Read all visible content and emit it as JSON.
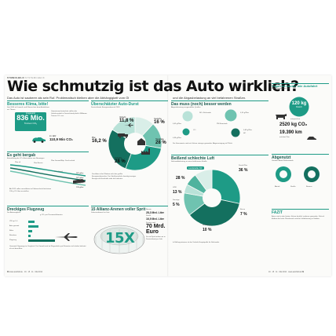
{
  "header": {
    "kicker": "SYMBOLBILD",
    "kicker_sub": "SYSTEMCHECK",
    "headline": "Wie schmutzig ist das   Auto wirklich?",
    "subline_left": "Das Auto ist sauberer als sein Ruf. Problematisch bleiben aber die Abhängigkeit vom Öl",
    "subline_right": "und die Abgasbelastung an viel befahrenen Straßen."
  },
  "klima": {
    "title": "Besseres Klima, bitte!",
    "intro": "Seit 2006 ist Umwelt- und Klimaschutz beim Autofahren ein Thema",
    "value": "836 Mio.",
    "value_label": "insgesamt",
    "value_unit": "Tonnen CO₂",
    "car_label": "Pkws",
    "car_value": "110,9 Mio CO₂",
    "car_unit": "im Jahr",
    "text": "Gemeinsam betrachtet stoßen die Verkehrsmittel in Deutschland jährlich Millionen Tonnen CO₂ aus."
  },
  "es_geht_bergab": {
    "title": "Es geht bergab",
    "subtitle": "Entwicklung der CO₂-Emissionen von Neuwagen",
    "labels": [
      "Pkw alt",
      "Pkw Benzin",
      "Pkw Gesamt/Bsp. Durchschnitt",
      "Pkw Diesel"
    ],
    "note": "Ab 2012 sollen neue Autos im Flottenschnitt höchstens 130 g CO₂/km ausstoßen.",
    "values": [
      "181 g/km",
      "167 g/km",
      "151 g/km",
      "139 g/km"
    ]
  },
  "flugzeug": {
    "title": "Dreckiges Flugzeug",
    "subtitle": "Der Autovergleich",
    "legend": "g CO₂ pro Personenkilometer",
    "rows": [
      "VW up 1.0",
      "Auto gesamt",
      "Bahn",
      "Reisebus",
      "Flugzeug"
    ],
    "values": [
      89,
      142,
      52,
      30,
      380
    ],
    "note": "Gesamte Flugzeuge im Vergleich: Die Umwelt wird im Flugverkehr pro Kilometer viel stärker belastet als mit dem Auto."
  },
  "autodurst": {
    "title": "Überschätzter Auto-Durst",
    "subtitle": "Deutschlands Energieverbrauch 2010",
    "segments": [
      {
        "label": "Verkehr",
        "value": "11,8 %"
      },
      {
        "label": "Gewerbe",
        "value": "16 %"
      },
      {
        "label": "Haushalte",
        "value": "28 %"
      },
      {
        "label": "Industrie",
        "value": "28 %"
      },
      {
        "label": "Pkw",
        "value": "16,2 %"
      }
    ],
    "text": "Das Auto ist bei Weitem nicht der größte Energieverbraucher. Der Straßenverkehr benötigt weniger Energie als Haushalte oder die Industrie."
  },
  "allianz": {
    "title": "15 Allianz-Arenen voller Sprit",
    "subtitle": "Jahresverbrauch in Liter",
    "big_label": "15X",
    "benzin_label": "Benzin",
    "benzin_value": "28,3 Mrd. Liter",
    "diesel_label": "Diesel",
    "diesel_value": "16,9 Mrd. Liter",
    "kosten_label": "Kosten rund",
    "kosten_value": "70 Mrd.",
    "kosten_unit": "Euro",
    "note": "So viel Sprit tanken wir in Deutschland pro Jahr."
  },
  "abgase": {
    "title": "Das muss (noch) besser werden",
    "subtitle": "Abgasbelastung ausgewählter Quellen",
    "items": [
      {
        "label": "NO₂ Stickoxide",
        "value": "0,03 g/Pkw"
      },
      {
        "label": "PM Feinstaub",
        "value": "0,14 g/Pkw"
      },
      {
        "label": "CO",
        "value": "0,38 g/Pkw"
      },
      {
        "label": "HC",
        "value": "0,08 g/Pkw"
      }
    ],
    "text": "Die Grenzwerte sind seit Jahren strenger geworden. Abgasreinigung ist Pflicht."
  },
  "luft": {
    "title": "Beißend schlechte Luft",
    "subtitle": "Stickoxidbelastung an einer befahrenen Straße",
    "segments": [
      {
        "label": "Landstraße Kfz",
        "value": "28 %"
      },
      {
        "label": "Diesel-Pkw",
        "value": "36 %"
      },
      {
        "label": "LKW",
        "value": "13 %"
      },
      {
        "label": "Sonstige",
        "value": "5 %"
      },
      {
        "label": "Busse",
        "value": "7 %"
      },
      {
        "label": "Hintergrund",
        "value": "10 %"
      }
    ],
    "note": "In Ballungsräumen ist der Verkehr Hauptquelle für Stickoxide."
  },
  "vegan": {
    "title": "Vegan so sauber wie Autofahrt",
    "subtitle": "Fleischkonsum pro Jahr",
    "value1": "120 kg",
    "label1": "Fleisch",
    "label2": "entsprechen",
    "value2": "2520 kg CO₂",
    "value3": "19.390 km",
    "label3": "mit dem Pkw"
  },
  "abgenutzt": {
    "title": "Abgenutzt",
    "subtitle": "Verteilter Anteil Reifenabrieb",
    "items": [
      "Abrieb",
      "Straße",
      "Bremse"
    ]
  },
  "fazit": {
    "title": "FAZIT",
    "text": "Autos sind in den letzten Jahren deutlich sauberer geworden. Kritisch bleiben der hohe Ölverbrauch und die Luftbelastung in Städten."
  },
  "footer": {
    "left_page": "88",
    "left_text": "www.autobild.de · 19 · 15 · 11 · Mai 2012",
    "right_text": "19 · 15 · 11 · Mai 2012 · www.autobild.de",
    "right_page": "89"
  },
  "colors": {
    "accent": "#1e9b86",
    "accent_light": "#b9e2d8",
    "accent_dark": "#14705f",
    "ink": "#111111"
  }
}
